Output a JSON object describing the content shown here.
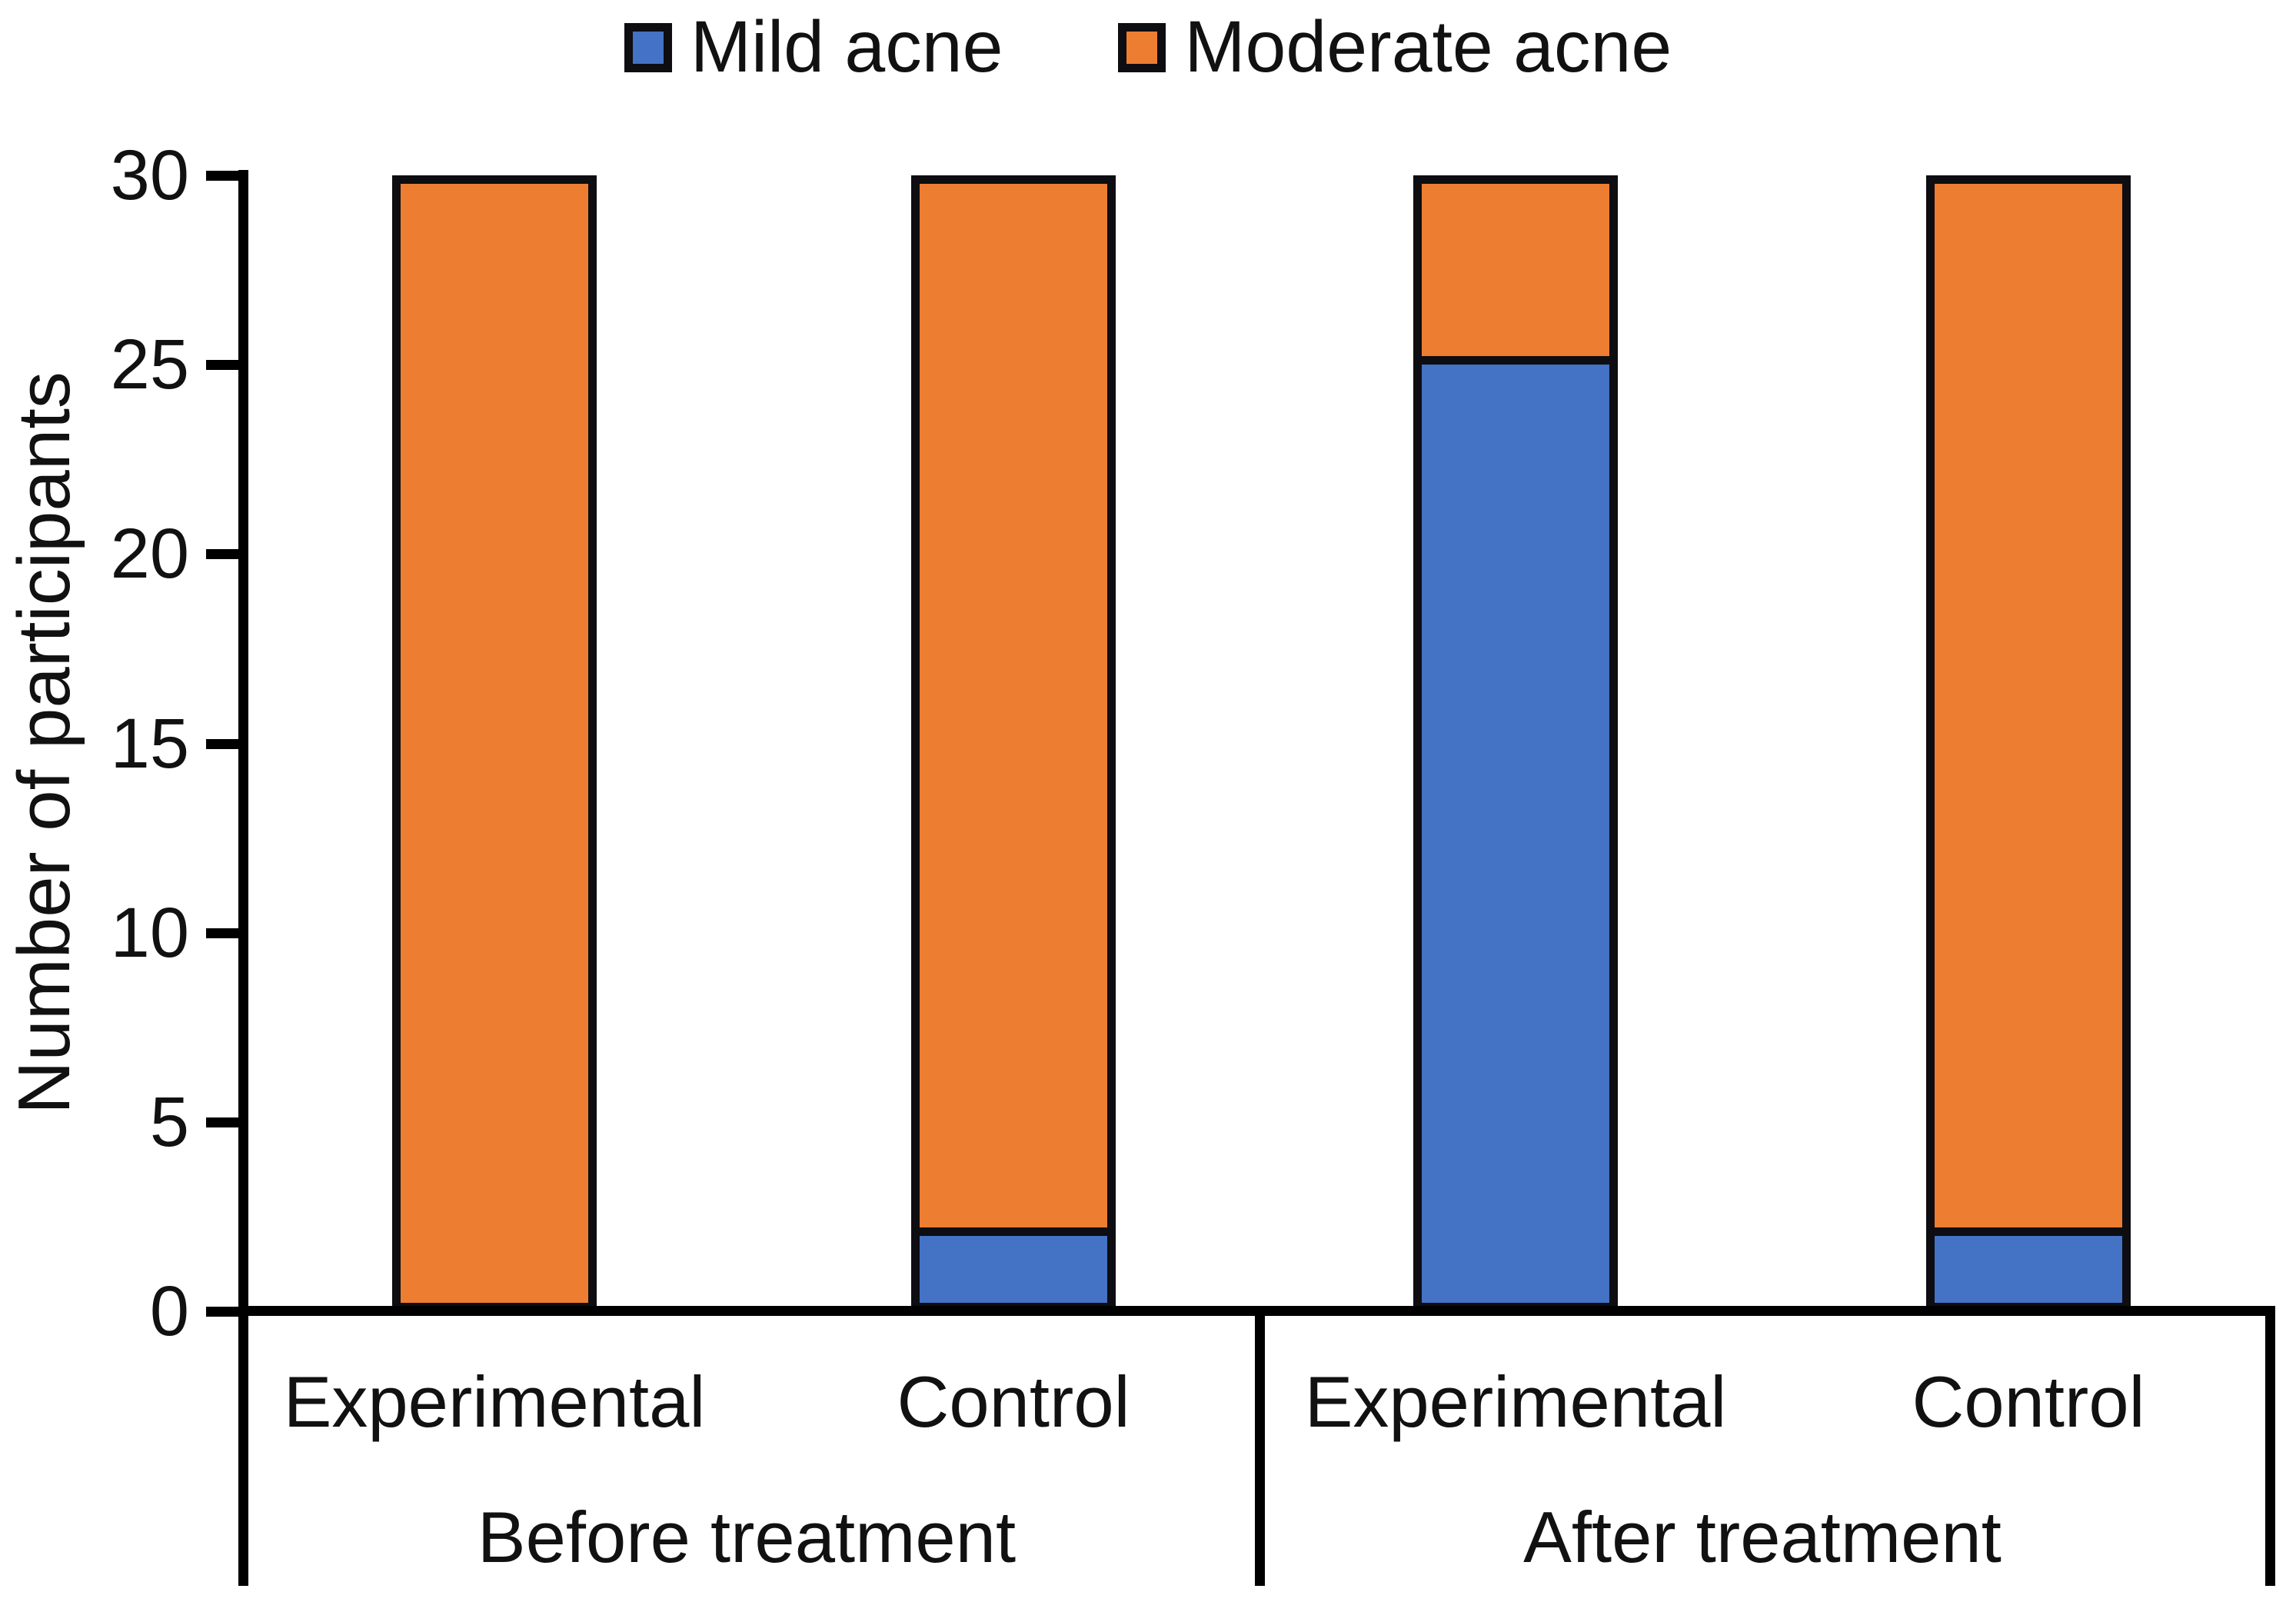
{
  "chart_data": {
    "type": "bar",
    "stacked": true,
    "title": "",
    "ylabel": "Number of participants",
    "xlabel": "",
    "ylim": [
      0,
      30
    ],
    "yticks": [
      0,
      5,
      10,
      15,
      20,
      25,
      30
    ],
    "grid": false,
    "legend_position": "top",
    "groups": [
      {
        "label": "Before treatment",
        "categories": [
          "Experimental",
          "Control"
        ]
      },
      {
        "label": "After treatment",
        "categories": [
          "Experimental",
          "Control"
        ]
      }
    ],
    "categories": [
      "Experimental",
      "Control",
      "Experimental",
      "Control"
    ],
    "series": [
      {
        "name": "Mild acne",
        "color": "#4472C4",
        "values": [
          0,
          2,
          25,
          2
        ]
      },
      {
        "name": "Moderate acne",
        "color": "#ED7D31",
        "values": [
          30,
          28,
          5,
          28
        ]
      }
    ],
    "colors": {
      "bar_border": "#0d0d12",
      "axis": "#000000",
      "text": "#111111",
      "background": "#ffffff"
    }
  }
}
